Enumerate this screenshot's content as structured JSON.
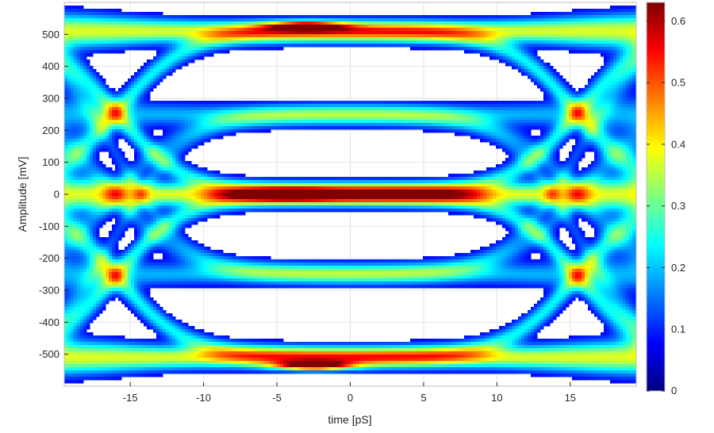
{
  "chart_data": {
    "type": "heatmap",
    "subtype": "eye-diagram",
    "title": "",
    "xlabel": "time [pS]",
    "ylabel": "Amplitude [mV]",
    "xlim": [
      -19.5,
      19.5
    ],
    "ylim": [
      -600,
      600
    ],
    "x_ticks": [
      -15,
      -10,
      -5,
      0,
      5,
      10,
      15
    ],
    "x_tick_labels": [
      "-15",
      "-10",
      "-5",
      "0",
      "5",
      "10",
      "15"
    ],
    "y_ticks": [
      500,
      400,
      300,
      200,
      100,
      0,
      -100,
      -200,
      -300,
      -400,
      -500
    ],
    "y_tick_labels": [
      "500",
      "400",
      "300",
      "200",
      "100",
      "0",
      "-100",
      "-200",
      "-300",
      "-400",
      "-500"
    ],
    "grid": true,
    "colorbar": {
      "range": [
        0,
        0.63
      ],
      "ticks": [
        0,
        0.1,
        0.2,
        0.3,
        0.4,
        0.5,
        0.6
      ],
      "tick_labels": [
        "0",
        "0.1",
        "0.2",
        "0.3",
        "0.4",
        "0.5",
        "0.6"
      ],
      "colormap": "jet"
    },
    "levels_mV": [
      510,
      250,
      0,
      -250,
      -510
    ],
    "signal_format": "PAM-4",
    "traces": [
      {
        "from": 510,
        "to": 510,
        "weight": 0.35
      },
      {
        "from": 510,
        "to": 0,
        "weight": 0.2
      },
      {
        "from": 0,
        "to": 510,
        "weight": 0.2
      },
      {
        "from": 0,
        "to": 0,
        "weight": 0.35
      },
      {
        "from": 0,
        "to": -510,
        "weight": 0.2
      },
      {
        "from": -510,
        "to": 0,
        "weight": 0.2
      },
      {
        "from": -510,
        "to": -510,
        "weight": 0.35
      },
      {
        "from": 250,
        "to": 250,
        "weight": 0.15
      },
      {
        "from": -250,
        "to": -250,
        "weight": 0.15
      },
      {
        "from": 250,
        "to": -250,
        "weight": 0.1
      },
      {
        "from": -250,
        "to": 250,
        "weight": 0.1
      },
      {
        "from": 510,
        "to": -250,
        "weight": 0.08
      },
      {
        "from": -510,
        "to": 250,
        "weight": 0.08
      }
    ],
    "hotspots": [
      {
        "x": -4,
        "y": 0,
        "density": 0.63
      },
      {
        "x": -3,
        "y": 525,
        "density": 0.55
      },
      {
        "x": -2.5,
        "y": -535,
        "density": 0.6
      }
    ]
  }
}
